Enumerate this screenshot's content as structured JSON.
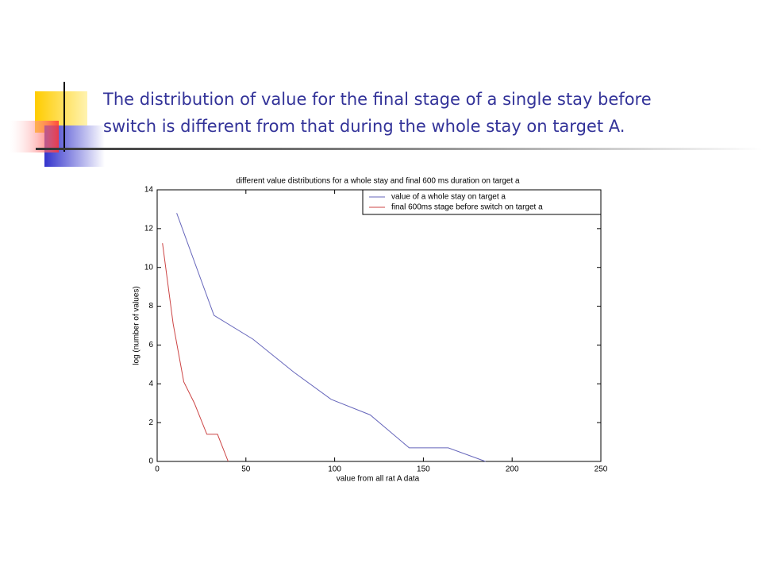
{
  "slide": {
    "title_lines": [
      "The distribution of value for the final stage of a single stay before",
      "switch is different from that during the whole stay on target A."
    ]
  },
  "chart_data": {
    "type": "line",
    "title": "different value distributions for a whole stay and final 600 ms duration on target a",
    "xlabel": "value from all rat A data",
    "ylabel": "log (number of values)",
    "series": [
      {
        "name": "value of a whole stay on target a",
        "color": "#6666bb",
        "x": [
          11,
          32,
          54,
          77,
          98,
          120,
          142,
          164,
          185
        ],
        "values": [
          12.8,
          7.53,
          6.3,
          4.6,
          3.2,
          2.4,
          0.7,
          0.7,
          0
        ]
      },
      {
        "name": "final 600ms stage before switch on target a",
        "color": "#cc4444",
        "x": [
          3,
          9,
          15,
          21,
          28,
          34,
          40
        ],
        "values": [
          11.25,
          7.1,
          4.1,
          3.0,
          1.4,
          1.4,
          0
        ]
      }
    ],
    "xlim": [
      0,
      250
    ],
    "xticks": [
      0,
      50,
      100,
      150,
      200,
      250
    ],
    "ylim": [
      0,
      14
    ],
    "yticks": [
      0,
      2,
      4,
      6,
      8,
      10,
      12,
      14
    ],
    "legend": "top-right"
  }
}
